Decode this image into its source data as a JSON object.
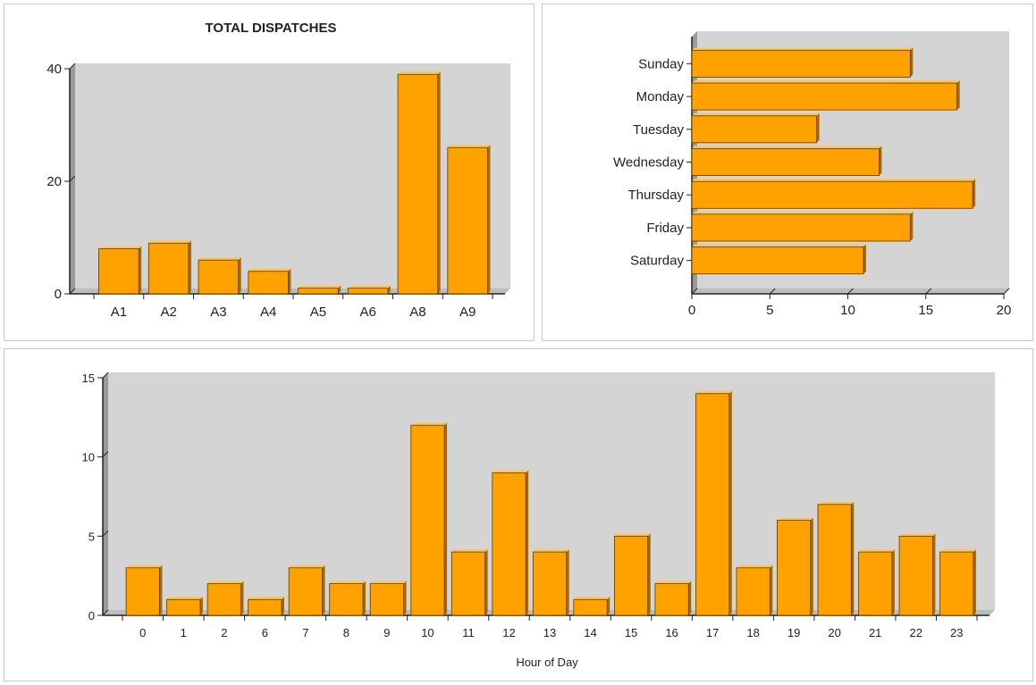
{
  "colors": {
    "bar_front": "#ffa200",
    "bar_side": "#a86a00",
    "bar_top": "#ffc555",
    "plot_back": "#d4d4d4",
    "plot_wall": "#9a9a9a",
    "plot_floor": "#bdbdbd"
  },
  "chart_data": [
    {
      "type": "bar",
      "orientation": "vertical",
      "title": "TOTAL DISPATCHES",
      "xlabel": "",
      "ylabel": "",
      "categories": [
        "A1",
        "A2",
        "A3",
        "A4",
        "A5",
        "A6",
        "A8",
        "A9"
      ],
      "values": [
        8,
        9,
        6,
        4,
        1,
        1,
        39,
        26
      ],
      "ylim": [
        0,
        40
      ],
      "yticks": [
        0,
        20,
        40
      ],
      "grid": false
    },
    {
      "type": "bar",
      "orientation": "horizontal",
      "title": "",
      "xlabel": "",
      "ylabel": "",
      "categories": [
        "Sunday",
        "Monday",
        "Tuesday",
        "Wednesday",
        "Thursday",
        "Friday",
        "Saturday"
      ],
      "values": [
        14,
        17,
        8,
        12,
        18,
        14,
        11
      ],
      "xlim": [
        0,
        20
      ],
      "xticks": [
        0,
        5,
        10,
        15,
        20
      ],
      "grid": false
    },
    {
      "type": "bar",
      "orientation": "vertical",
      "title": "",
      "xlabel": "Hour of Day",
      "ylabel": "",
      "categories": [
        "0",
        "1",
        "2",
        "6",
        "7",
        "8",
        "9",
        "10",
        "11",
        "12",
        "13",
        "14",
        "15",
        "16",
        "17",
        "18",
        "19",
        "20",
        "21",
        "22",
        "23"
      ],
      "values": [
        3,
        1,
        2,
        1,
        3,
        2,
        2,
        12,
        4,
        9,
        4,
        1,
        5,
        2,
        14,
        3,
        6,
        7,
        4,
        5,
        4
      ],
      "ylim": [
        0,
        15
      ],
      "yticks": [
        0,
        5,
        10,
        15
      ],
      "grid": false
    }
  ]
}
